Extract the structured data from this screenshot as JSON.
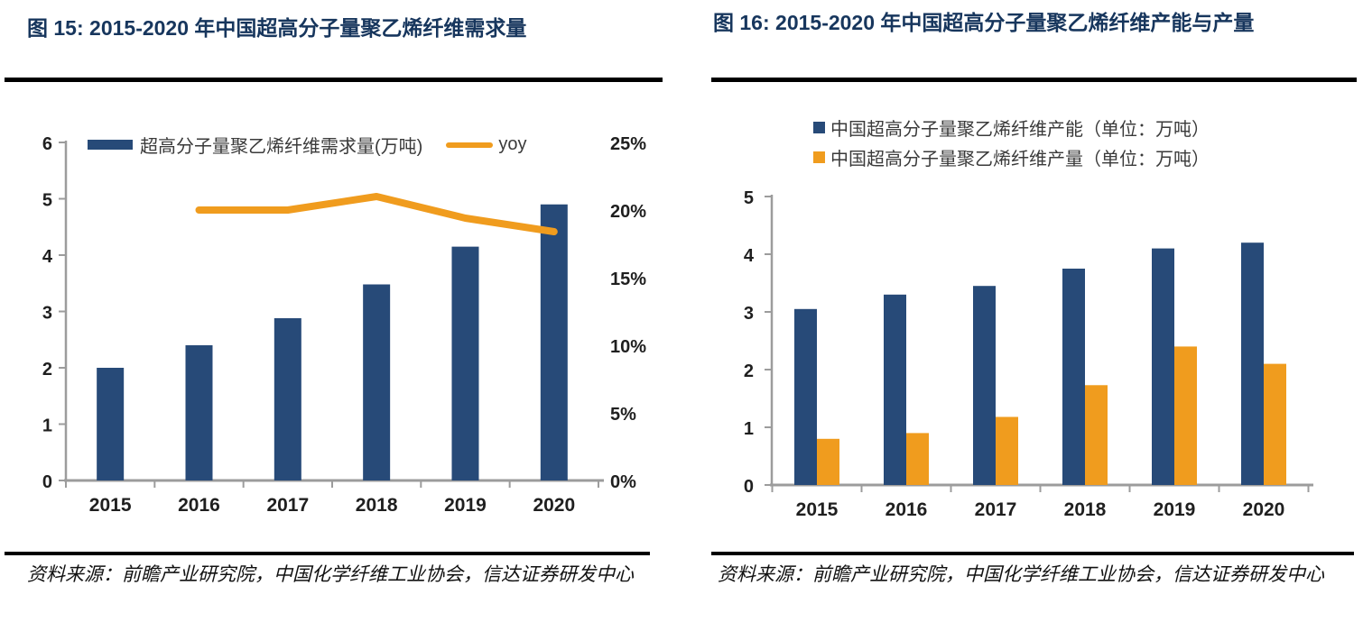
{
  "colors": {
    "navy": "#274A78",
    "orange": "#F09C1E",
    "title_navy": "#17365D",
    "axis_gray": "#9C9C9C",
    "label_dark": "#1F1F1F",
    "legend_text": "#3A3A3A",
    "rule_black": "#000000"
  },
  "chart_data": [
    {
      "id": "demand",
      "type": "bar",
      "title": "图 15: 2015-2020 年中国超高分子量聚乙烯纤维需求量",
      "categories": [
        "2015",
        "2016",
        "2017",
        "2018",
        "2019",
        "2020"
      ],
      "series": [
        {
          "name": "超高分子量聚乙烯纤维需求量(万吨)",
          "type": "bar",
          "axis": "left",
          "color": "navy",
          "values": [
            2.0,
            2.4,
            2.88,
            3.48,
            4.15,
            4.9
          ]
        },
        {
          "name": "yoy",
          "type": "line",
          "axis": "right",
          "color": "orange",
          "values": [
            null,
            20,
            20,
            21,
            19.4,
            18.4
          ]
        }
      ],
      "left_axis": {
        "min": 0,
        "max": 6,
        "ticks": [
          "0",
          "1",
          "2",
          "3",
          "4",
          "5",
          "6"
        ]
      },
      "right_axis": {
        "min": 0,
        "max": 25,
        "ticks": [
          "0%",
          "5%",
          "10%",
          "15%",
          "20%",
          "25%"
        ]
      },
      "grid": "off",
      "legend_position": "top",
      "source": "资料来源：前瞻产业研究院，中国化学纤维工业协会，信达证券研发中心"
    },
    {
      "id": "capacity-output",
      "type": "bar",
      "title": "图 16: 2015-2020 年中国超高分子量聚乙烯纤维产能与产量",
      "categories": [
        "2015",
        "2016",
        "2017",
        "2018",
        "2019",
        "2020"
      ],
      "series": [
        {
          "name": "中国超高分子量聚乙烯纤维产能（单位：万吨）",
          "type": "bar",
          "axis": "left",
          "color": "navy",
          "values": [
            3.05,
            3.3,
            3.45,
            3.75,
            4.1,
            4.2
          ]
        },
        {
          "name": "中国超高分子量聚乙烯纤维产量（单位：万吨）",
          "type": "bar",
          "axis": "left",
          "color": "orange",
          "values": [
            0.8,
            0.9,
            1.18,
            1.73,
            2.4,
            2.1
          ]
        }
      ],
      "left_axis": {
        "min": 0,
        "max": 5,
        "ticks": [
          "0",
          "1",
          "2",
          "3",
          "4",
          "5"
        ]
      },
      "grid": "off",
      "legend_position": "top",
      "source": "资料来源：前瞻产业研究院，中国化学纤维工业协会，信达证券研发中心"
    }
  ]
}
